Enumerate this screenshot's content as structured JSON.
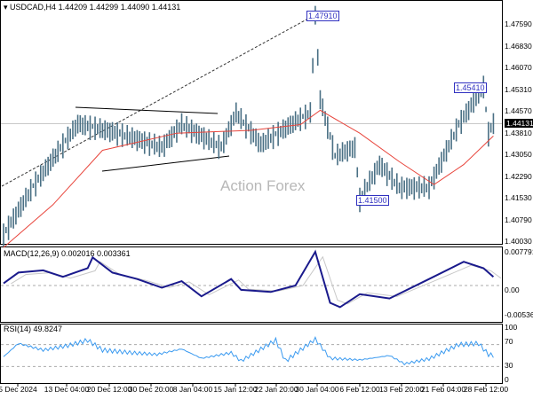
{
  "header": {
    "symbol": "USDCAD,H4",
    "open": "1.44209",
    "high": "1.44299",
    "low": "1.44090",
    "close": "1.44131"
  },
  "watermark": "Action Forex",
  "current_price": "1.44131",
  "annotations": {
    "high1": "1.47910",
    "high2": "1.45410",
    "low1": "1.41500"
  },
  "price_axis": [
    "1.47590",
    "1.46830",
    "1.46070",
    "1.45310",
    "1.44570",
    "1.43810",
    "1.43050",
    "1.42290",
    "1.41530",
    "1.40790",
    "1.40030"
  ],
  "macd": {
    "title": "MACD(12,26,9) 0.002016 0.003361",
    "axis": [
      "0.007791",
      "0.00",
      "-0.005367"
    ]
  },
  "rsi": {
    "title": "RSI(14) 49.8247",
    "axis": [
      "100",
      "70",
      "30",
      "0"
    ]
  },
  "time_axis": [
    "5 Dec 2024",
    "13 Dec 04:00",
    "20 Dec 12:00",
    "30 Dec 20:00",
    "8 Jan 04:00",
    "15 Jan 12:00",
    "22 Jan 20:00",
    "30 Jan 04:00",
    "6 Feb 12:00",
    "13 Feb 20:00",
    "21 Feb 04:00",
    "28 Feb 12:00"
  ],
  "chart_data": {
    "type": "line",
    "title": "USDCAD,H4",
    "ylim": [
      1.4003,
      1.4835
    ],
    "price": [
      [
        0,
        1.4024
      ],
      [
        6,
        1.4194
      ],
      [
        15,
        1.4412
      ],
      [
        23,
        1.438
      ],
      [
        32,
        1.433
      ],
      [
        36,
        1.441
      ],
      [
        44,
        1.433
      ],
      [
        47,
        1.445
      ],
      [
        52,
        1.434
      ],
      [
        59,
        1.442
      ],
      [
        62,
        1.445
      ],
      [
        63,
        1.479
      ],
      [
        64,
        1.45
      ],
      [
        67,
        1.43
      ],
      [
        71,
        1.433
      ],
      [
        72,
        1.415
      ],
      [
        76,
        1.427
      ],
      [
        80,
        1.419
      ],
      [
        86,
        1.419
      ],
      [
        92,
        1.441
      ],
      [
        97,
        1.4541
      ],
      [
        98,
        1.438
      ],
      [
        99,
        1.4413
      ]
    ],
    "ma": [
      [
        0,
        1.398
      ],
      [
        10,
        1.413
      ],
      [
        20,
        1.432
      ],
      [
        35,
        1.438
      ],
      [
        50,
        1.439
      ],
      [
        60,
        1.441
      ],
      [
        64,
        1.446
      ],
      [
        72,
        1.438
      ],
      [
        80,
        1.428
      ],
      [
        87,
        1.42
      ],
      [
        93,
        1.427
      ],
      [
        99,
        1.437
      ]
    ],
    "macd": [
      [
        0,
        0.0005
      ],
      [
        3,
        0.003
      ],
      [
        8,
        0.0035
      ],
      [
        12,
        0.002
      ],
      [
        17,
        0.004
      ],
      [
        18,
        0.0065
      ],
      [
        22,
        0.003
      ],
      [
        27,
        0.0015
      ],
      [
        32,
        -0.0005
      ],
      [
        36,
        0.001
      ],
      [
        40,
        -0.0025
      ],
      [
        46,
        0.0015
      ],
      [
        48,
        -0.001
      ],
      [
        54,
        -0.0015
      ],
      [
        59,
        0
      ],
      [
        63,
        0.0078
      ],
      [
        66,
        -0.004
      ],
      [
        68,
        -0.005
      ],
      [
        72,
        -0.002
      ],
      [
        78,
        -0.003
      ],
      [
        86,
        0.0015
      ],
      [
        93,
        0.0055
      ],
      [
        97,
        0.004
      ],
      [
        99,
        0.002
      ]
    ],
    "rsi": [
      [
        0,
        48
      ],
      [
        3,
        72
      ],
      [
        8,
        60
      ],
      [
        13,
        68
      ],
      [
        17,
        78
      ],
      [
        20,
        60
      ],
      [
        26,
        55
      ],
      [
        31,
        52
      ],
      [
        36,
        62
      ],
      [
        40,
        45
      ],
      [
        46,
        55
      ],
      [
        48,
        40
      ],
      [
        55,
        78
      ],
      [
        57,
        40
      ],
      [
        63,
        80
      ],
      [
        66,
        45
      ],
      [
        72,
        42
      ],
      [
        78,
        50
      ],
      [
        81,
        35
      ],
      [
        86,
        44
      ],
      [
        92,
        70
      ],
      [
        96,
        72
      ],
      [
        98,
        52
      ],
      [
        99,
        50
      ]
    ],
    "trendlines": "triangle and diagonal support"
  }
}
